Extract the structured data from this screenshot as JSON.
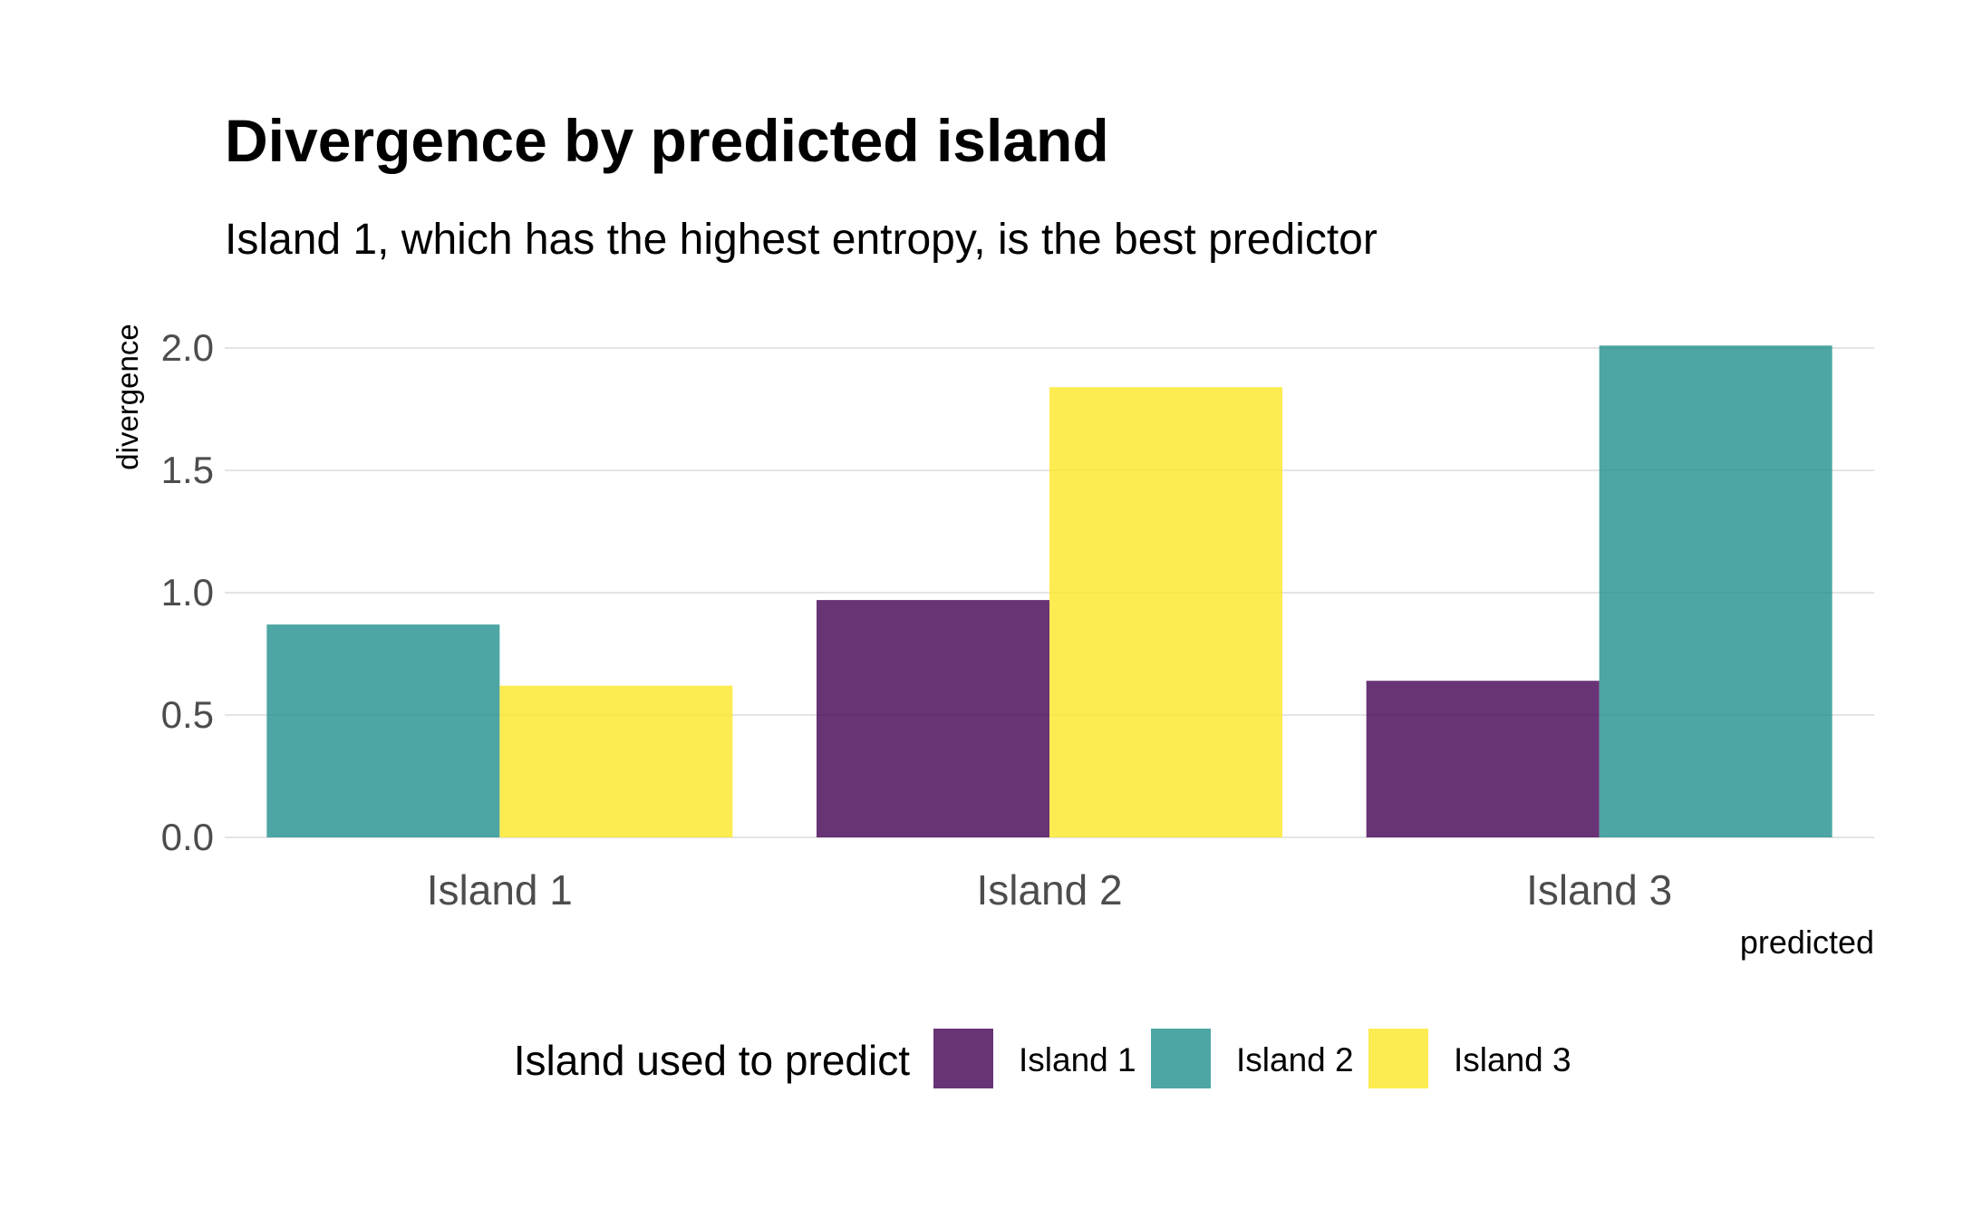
{
  "chart_data": {
    "type": "bar",
    "title": "Divergence by predicted island",
    "subtitle": "Island 1, which has the highest entropy, is the best predictor",
    "xlabel": "predicted",
    "ylabel": "divergence",
    "categories": [
      "Island 1",
      "Island 2",
      "Island 3"
    ],
    "ylim": [
      0,
      2.0
    ],
    "yticks": [
      "0.0",
      "0.5",
      "1.0",
      "1.5",
      "2.0"
    ],
    "grid": true,
    "legend": {
      "title": "Island used to predict",
      "position": "bottom"
    },
    "series": [
      {
        "name": "Island 1",
        "color": "#440154",
        "values": [
          null,
          0.97,
          0.64
        ]
      },
      {
        "name": "Island 2",
        "color": "#21908C",
        "values": [
          0.87,
          null,
          2.01
        ]
      },
      {
        "name": "Island 3",
        "color": "#FDE725",
        "values": [
          0.62,
          1.84,
          null
        ]
      }
    ]
  }
}
